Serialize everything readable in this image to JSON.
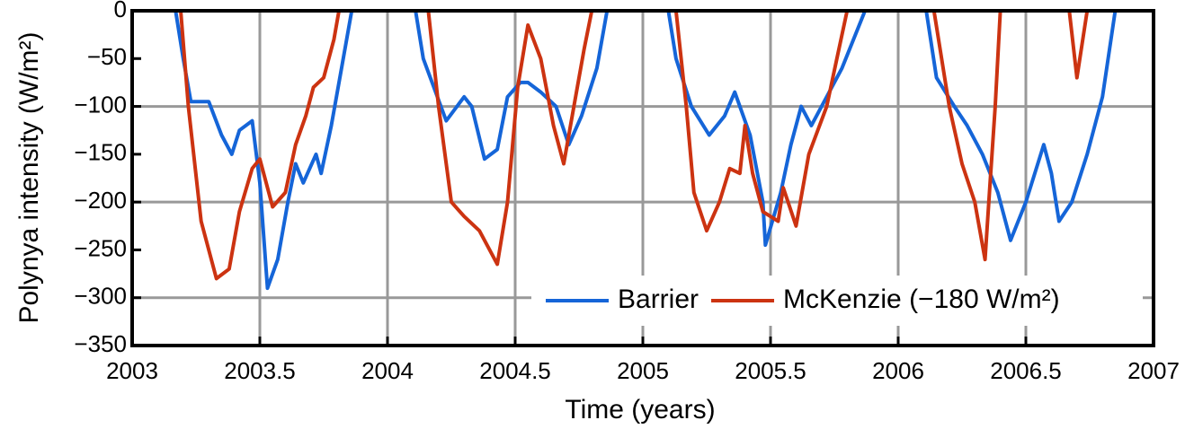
{
  "chart_data": {
    "type": "line",
    "xlabel": "Time (years)",
    "ylabel": "Polynya intensity (W/m²)",
    "xlim": [
      2003,
      2007
    ],
    "ylim": [
      -350,
      0
    ],
    "xticks": [
      2003,
      2003.5,
      2004,
      2004.5,
      2005,
      2005.5,
      2006,
      2006.5,
      2007
    ],
    "yticks": [
      {
        "value": 0,
        "label": "0"
      },
      {
        "value": -50,
        "label": "−50"
      },
      {
        "value": -100,
        "label": "−100"
      },
      {
        "value": -150,
        "label": "−150"
      },
      {
        "value": -200,
        "label": "−200"
      },
      {
        "value": -250,
        "label": "−250"
      },
      {
        "value": -300,
        "label": "−300"
      },
      {
        "value": -350,
        "label": "−350"
      }
    ],
    "xgrid": [
      2003.5,
      2004,
      2004.5,
      2005,
      2005.5,
      2006,
      2006.5
    ],
    "ygrid": [
      -100,
      -200,
      -300
    ],
    "legend": "lower right",
    "series": [
      {
        "name": "Barrier",
        "color": "#1565d8",
        "x": [
          2003.17,
          2003.2,
          2003.23,
          2003.3,
          2003.35,
          2003.39,
          2003.42,
          2003.47,
          2003.5,
          2003.53,
          2003.57,
          2003.61,
          2003.64,
          2003.67,
          2003.72,
          2003.74,
          2003.78,
          2003.82,
          2003.86,
          null,
          2004.11,
          2004.14,
          2004.23,
          2004.3,
          2004.33,
          2004.38,
          2004.43,
          2004.47,
          2004.52,
          2004.55,
          2004.6,
          2004.66,
          2004.71,
          2004.76,
          2004.82,
          2004.86,
          null,
          2005.1,
          2005.13,
          2005.19,
          2005.26,
          2005.32,
          2005.36,
          2005.42,
          2005.47,
          2005.48,
          2005.54,
          2005.58,
          2005.62,
          2005.66,
          2005.7,
          2005.78,
          2005.87,
          null,
          2006.11,
          2006.15,
          2006.22,
          2006.27,
          2006.33,
          2006.39,
          2006.44,
          2006.5,
          2006.57,
          2006.6,
          2006.63,
          2006.68,
          2006.74,
          2006.8,
          2006.85
        ],
        "values": [
          0,
          -50,
          -95,
          -95,
          -130,
          -150,
          -125,
          -115,
          -180,
          -290,
          -260,
          -200,
          -160,
          -180,
          -150,
          -170,
          -120,
          -60,
          0,
          null,
          0,
          -50,
          -115,
          -90,
          -100,
          -155,
          -145,
          -90,
          -75,
          -75,
          -85,
          -100,
          -140,
          -110,
          -60,
          0,
          null,
          0,
          -50,
          -100,
          -130,
          -110,
          -85,
          -130,
          -200,
          -245,
          -190,
          -140,
          -100,
          -120,
          -100,
          -60,
          0,
          null,
          0,
          -70,
          -100,
          -120,
          -150,
          -190,
          -240,
          -200,
          -140,
          -170,
          -220,
          -200,
          -150,
          -90,
          0
        ]
      },
      {
        "name": "McKenzie (−180 W/m²)",
        "color": "#cc3311",
        "x": [
          2003.19,
          2003.22,
          2003.27,
          2003.33,
          2003.38,
          2003.42,
          2003.47,
          2003.5,
          2003.55,
          2003.6,
          2003.64,
          2003.68,
          2003.71,
          2003.75,
          2003.79,
          2003.81,
          null,
          2004.16,
          2004.2,
          2004.25,
          2004.3,
          2004.36,
          2004.4,
          2004.43,
          2004.47,
          2004.51,
          2004.55,
          2004.6,
          2004.65,
          2004.69,
          2004.73,
          2004.77,
          2004.8,
          null,
          2005.13,
          2005.17,
          2005.2,
          2005.25,
          2005.3,
          2005.34,
          2005.38,
          2005.4,
          2005.43,
          2005.47,
          2005.53,
          2005.55,
          2005.6,
          2005.65,
          2005.72,
          2005.76,
          2005.8,
          null,
          2006.14,
          2006.2,
          2006.25,
          2006.3,
          2006.34,
          2006.36,
          2006.38,
          2006.4,
          null,
          2006.67,
          2006.7,
          2006.74
        ],
        "values": [
          0,
          -100,
          -220,
          -280,
          -270,
          -210,
          -165,
          -155,
          -205,
          -190,
          -140,
          -110,
          -80,
          -70,
          -30,
          0,
          null,
          0,
          -100,
          -200,
          -215,
          -230,
          -250,
          -265,
          -200,
          -80,
          -15,
          -50,
          -120,
          -160,
          -100,
          -40,
          0,
          null,
          0,
          -100,
          -190,
          -230,
          -200,
          -165,
          -170,
          -120,
          -170,
          -210,
          -220,
          -185,
          -225,
          -150,
          -100,
          -50,
          0,
          null,
          0,
          -100,
          -160,
          -200,
          -260,
          -180,
          -100,
          0,
          null,
          0,
          -70,
          0
        ]
      }
    ]
  }
}
